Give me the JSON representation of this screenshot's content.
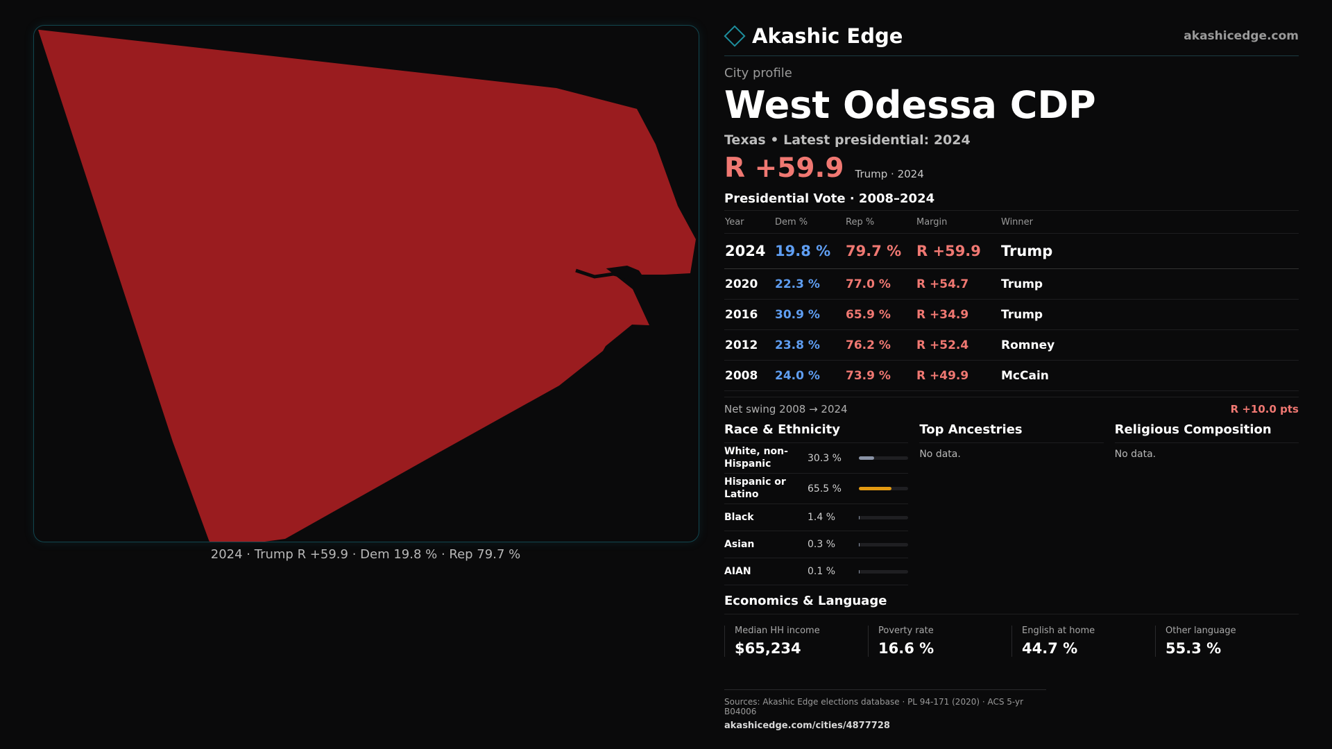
{
  "map": {
    "fill_color": "#9a1c1f",
    "caption": "2024 · Trump R +59.9 · Dem 19.8 % · Rep 79.7 %"
  },
  "header": {
    "brand": "Akashic Edge",
    "site": "akashicedge.com"
  },
  "profile": {
    "kicker": "City profile",
    "title": "West Odessa CDP",
    "subtitle": "Texas • Latest presidential: 2024",
    "headline_margin": "R +59.9",
    "headline_note": "Trump · 2024"
  },
  "presidential": {
    "title": "Presidential Vote · 2008–2024",
    "columns": [
      "Year",
      "Dem %",
      "Rep %",
      "Margin",
      "Winner"
    ],
    "rows": [
      {
        "year": "2024",
        "dem": "19.8 %",
        "rep": "79.7 %",
        "margin": "R +59.9",
        "winner": "Trump"
      },
      {
        "year": "2020",
        "dem": "22.3 %",
        "rep": "77.0 %",
        "margin": "R +54.7",
        "winner": "Trump"
      },
      {
        "year": "2016",
        "dem": "30.9 %",
        "rep": "65.9 %",
        "margin": "R +34.9",
        "winner": "Trump"
      },
      {
        "year": "2012",
        "dem": "23.8 %",
        "rep": "76.2 %",
        "margin": "R +52.4",
        "winner": "Romney"
      },
      {
        "year": "2008",
        "dem": "24.0 %",
        "rep": "73.9 %",
        "margin": "R +49.9",
        "winner": "McCain"
      }
    ],
    "swing_label": "Net swing 2008 → 2024",
    "swing_value": "R +10.0 pts"
  },
  "race": {
    "title": "Race & Ethnicity",
    "items": [
      {
        "name": "White, non-Hispanic",
        "pct": "30.3 %",
        "value": 30.3,
        "color": "#8a93a6"
      },
      {
        "name": "Hispanic or Latino",
        "pct": "65.5 %",
        "value": 65.5,
        "color": "#e39a12"
      },
      {
        "name": "Black",
        "pct": "1.4 %",
        "value": 1.4,
        "color": "#8a93a6"
      },
      {
        "name": "Asian",
        "pct": "0.3 %",
        "value": 0.3,
        "color": "#8a93a6"
      },
      {
        "name": "AIAN",
        "pct": "0.1 %",
        "value": 0.1,
        "color": "#8a93a6"
      }
    ]
  },
  "ancestries": {
    "title": "Top Ancestries",
    "empty": "No data."
  },
  "religion": {
    "title": "Religious Composition",
    "empty": "No data."
  },
  "economics": {
    "title": "Economics & Language",
    "stats": [
      {
        "label": "Median HH income",
        "value": "$65,234"
      },
      {
        "label": "Poverty rate",
        "value": "16.6 %"
      },
      {
        "label": "English at home",
        "value": "44.7 %"
      },
      {
        "label": "Other language",
        "value": "55.3 %"
      }
    ]
  },
  "sources": {
    "line": "Sources: Akashic Edge elections database · PL 94-171 (2020) · ACS 5-yr B04006",
    "url": "akashicedge.com/cities/4877728"
  }
}
